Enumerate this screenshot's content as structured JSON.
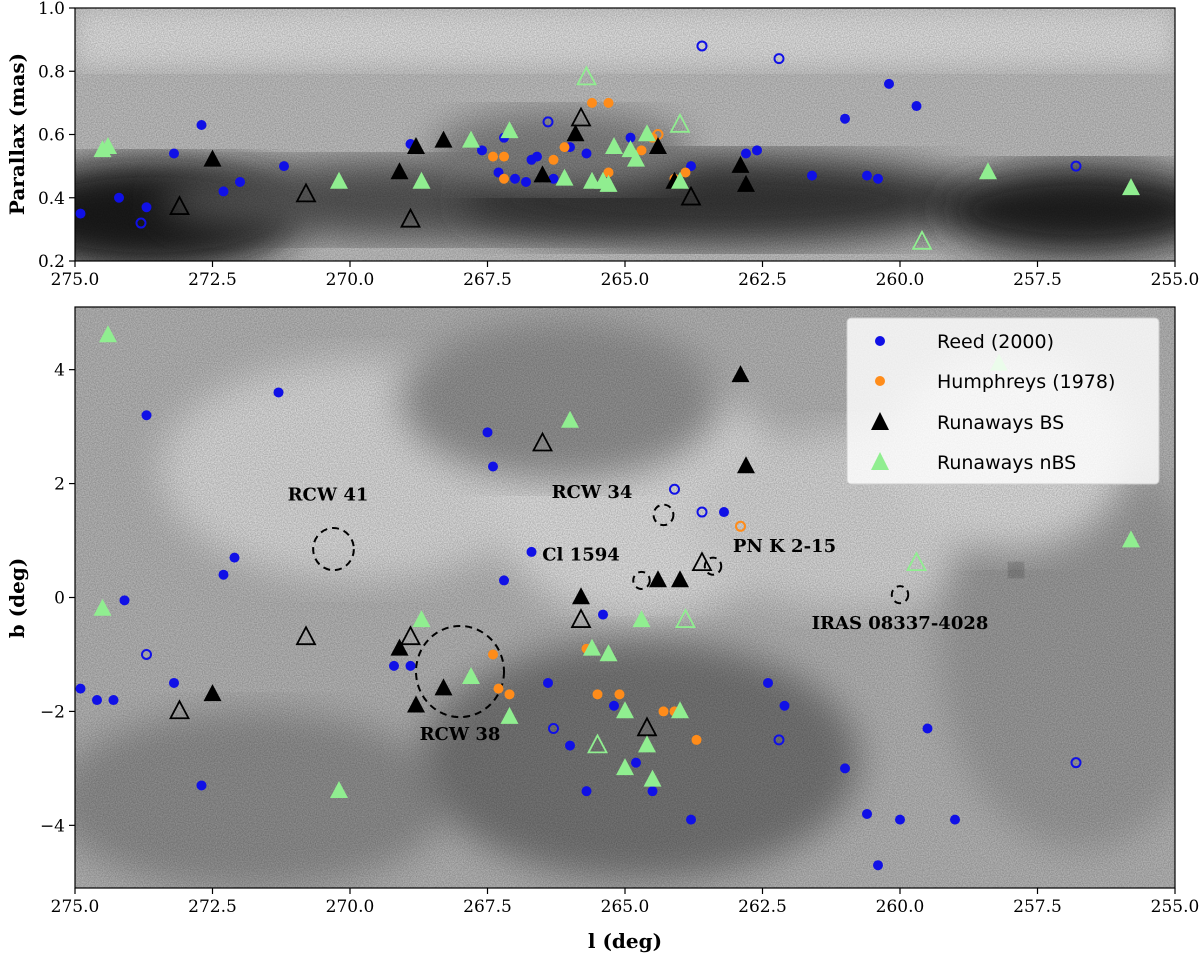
{
  "colors": {
    "reed": "#1010e6",
    "humphreys": "#ff8c1a",
    "bs": "#000000",
    "nbs": "#90ee90"
  },
  "chart_data": [
    {
      "type": "scatter",
      "xlabel": "",
      "ylabel": "Parallax (mas)",
      "xlim": [
        275.0,
        255.0
      ],
      "ylim": [
        0.2,
        1.0
      ],
      "x_ticks": [
        "275.0",
        "272.5",
        "270.0",
        "267.5",
        "265.0",
        "262.5",
        "260.0",
        "257.5",
        "255.0"
      ],
      "y_ticks": [
        "0.2",
        "0.4",
        "0.6",
        "0.8",
        "1.0"
      ],
      "background": "grayscale dust density map",
      "series": [
        {
          "name": "Reed (2000)",
          "marker": "circle",
          "color": "blue",
          "filled": [
            [
              274.9,
              0.35
            ],
            [
              274.2,
              0.4
            ],
            [
              273.7,
              0.37
            ],
            [
              273.2,
              0.54
            ],
            [
              272.7,
              0.63
            ],
            [
              272.3,
              0.42
            ],
            [
              272.0,
              0.45
            ],
            [
              271.2,
              0.5
            ],
            [
              268.9,
              0.57
            ],
            [
              267.6,
              0.55
            ],
            [
              267.3,
              0.48
            ],
            [
              267.0,
              0.46
            ],
            [
              266.8,
              0.45
            ],
            [
              266.7,
              0.52
            ],
            [
              266.6,
              0.53
            ],
            [
              267.2,
              0.59
            ],
            [
              266.3,
              0.46
            ],
            [
              266.0,
              0.56
            ],
            [
              265.7,
              0.54
            ],
            [
              264.9,
              0.59
            ],
            [
              263.8,
              0.5
            ],
            [
              262.8,
              0.54
            ],
            [
              262.6,
              0.55
            ],
            [
              261.6,
              0.47
            ],
            [
              261.0,
              0.65
            ],
            [
              260.6,
              0.47
            ],
            [
              260.4,
              0.46
            ],
            [
              260.2,
              0.76
            ],
            [
              259.7,
              0.69
            ]
          ],
          "open": [
            [
              273.8,
              0.32
            ],
            [
              266.4,
              0.64
            ],
            [
              263.6,
              0.88
            ],
            [
              262.2,
              0.84
            ],
            [
              256.8,
              0.5
            ]
          ]
        },
        {
          "name": "Humphreys (1978)",
          "marker": "circle",
          "color": "orange",
          "filled": [
            [
              267.4,
              0.53
            ],
            [
              267.2,
              0.53
            ],
            [
              267.2,
              0.46
            ],
            [
              266.3,
              0.52
            ],
            [
              266.1,
              0.56
            ],
            [
              265.6,
              0.7
            ],
            [
              265.3,
              0.7
            ],
            [
              265.3,
              0.48
            ],
            [
              264.7,
              0.55
            ],
            [
              264.5,
              0.59
            ],
            [
              264.1,
              0.46
            ],
            [
              263.9,
              0.48
            ]
          ],
          "open": [
            [
              264.4,
              0.6
            ]
          ]
        },
        {
          "name": "Runaways BS",
          "marker": "triangle",
          "color": "black",
          "filled": [
            [
              272.5,
              0.52
            ],
            [
              269.1,
              0.48
            ],
            [
              268.8,
              0.56
            ],
            [
              268.3,
              0.58
            ],
            [
              266.5,
              0.47
            ],
            [
              265.9,
              0.6
            ],
            [
              264.4,
              0.56
            ],
            [
              264.1,
              0.45
            ],
            [
              262.9,
              0.5
            ],
            [
              262.8,
              0.44
            ]
          ],
          "open": [
            [
              273.1,
              0.37
            ],
            [
              270.8,
              0.41
            ],
            [
              268.9,
              0.33
            ],
            [
              265.8,
              0.65
            ],
            [
              263.8,
              0.4
            ]
          ]
        },
        {
          "name": "Runaways nBS",
          "marker": "triangle",
          "color": "lightgreen",
          "filled": [
            [
              274.5,
              0.55
            ],
            [
              274.4,
              0.56
            ],
            [
              270.2,
              0.45
            ],
            [
              268.7,
              0.45
            ],
            [
              267.8,
              0.58
            ],
            [
              267.1,
              0.61
            ],
            [
              266.1,
              0.46
            ],
            [
              265.6,
              0.45
            ],
            [
              265.4,
              0.45
            ],
            [
              265.3,
              0.44
            ],
            [
              265.2,
              0.56
            ],
            [
              264.9,
              0.55
            ],
            [
              264.8,
              0.52
            ],
            [
              264.6,
              0.6
            ],
            [
              264.0,
              0.45
            ],
            [
              258.4,
              0.48
            ],
            [
              255.8,
              0.43
            ]
          ],
          "open": [
            [
              265.7,
              0.78
            ],
            [
              264.0,
              0.63
            ],
            [
              259.6,
              0.26
            ]
          ]
        }
      ]
    },
    {
      "type": "scatter",
      "xlabel": "l (deg)",
      "ylabel": "b (deg)",
      "xlim": [
        275.0,
        255.0
      ],
      "ylim": [
        -5.1,
        5.1
      ],
      "x_ticks": [
        "275.0",
        "272.5",
        "270.0",
        "267.5",
        "265.0",
        "262.5",
        "260.0",
        "257.5",
        "255.0"
      ],
      "y_ticks": [
        "−4",
        "−2",
        "0",
        "2",
        "4"
      ],
      "legend_position": "top-right",
      "background": "grayscale dust extinction map",
      "series": [
        {
          "name": "Reed (2000)",
          "marker": "circle",
          "color": "blue",
          "filled": [
            [
              274.9,
              -1.6
            ],
            [
              274.6,
              -1.8
            ],
            [
              274.3,
              -1.8
            ],
            [
              274.1,
              -0.05
            ],
            [
              273.7,
              3.2
            ],
            [
              273.2,
              -1.5
            ],
            [
              272.7,
              -3.3
            ],
            [
              272.3,
              0.4
            ],
            [
              272.1,
              0.7
            ],
            [
              271.3,
              3.6
            ],
            [
              269.2,
              -1.2
            ],
            [
              268.9,
              -1.2
            ],
            [
              267.5,
              2.9
            ],
            [
              267.4,
              2.3
            ],
            [
              267.2,
              0.3
            ],
            [
              266.7,
              0.8
            ],
            [
              266.4,
              -1.5
            ],
            [
              266.0,
              -2.6
            ],
            [
              265.7,
              -3.4
            ],
            [
              265.4,
              -0.3
            ],
            [
              265.2,
              -1.9
            ],
            [
              264.8,
              -2.9
            ],
            [
              264.5,
              -3.4
            ],
            [
              263.8,
              -3.9
            ],
            [
              262.4,
              -1.5
            ],
            [
              262.1,
              -1.9
            ],
            [
              261.0,
              -3.0
            ],
            [
              260.6,
              -3.8
            ],
            [
              260.4,
              -4.7
            ],
            [
              260.0,
              -3.9
            ],
            [
              259.5,
              -2.3
            ],
            [
              259.0,
              -3.9
            ],
            [
              263.2,
              1.5
            ]
          ],
          "open": [
            [
              273.7,
              -1.0
            ],
            [
              266.3,
              -2.3
            ],
            [
              264.1,
              1.9
            ],
            [
              263.6,
              1.5
            ],
            [
              262.2,
              -2.5
            ],
            [
              256.8,
              -2.9
            ]
          ]
        },
        {
          "name": "Humphreys (1978)",
          "marker": "circle",
          "color": "orange",
          "filled": [
            [
              267.4,
              -1.0
            ],
            [
              267.3,
              -1.6
            ],
            [
              267.1,
              -1.7
            ],
            [
              265.7,
              -0.9
            ],
            [
              265.5,
              -1.7
            ],
            [
              265.1,
              -1.7
            ],
            [
              264.3,
              -2.0
            ],
            [
              264.1,
              -2.0
            ],
            [
              263.7,
              -2.5
            ]
          ],
          "open": [
            [
              262.9,
              1.25
            ]
          ]
        },
        {
          "name": "Runaways BS",
          "marker": "triangle",
          "color": "black",
          "filled": [
            [
              272.5,
              -1.7
            ],
            [
              269.1,
              -0.9
            ],
            [
              268.8,
              -1.9
            ],
            [
              268.3,
              -1.6
            ],
            [
              265.8,
              0.0
            ],
            [
              264.4,
              0.3
            ],
            [
              264.0,
              0.3
            ],
            [
              262.9,
              3.9
            ],
            [
              262.8,
              2.3
            ]
          ],
          "open": [
            [
              273.1,
              -2.0
            ],
            [
              270.8,
              -0.7
            ],
            [
              268.9,
              -0.7
            ],
            [
              266.5,
              2.7
            ],
            [
              265.8,
              -0.4
            ],
            [
              264.6,
              -2.3
            ],
            [
              263.6,
              0.6
            ]
          ]
        },
        {
          "name": "Runaways nBS",
          "marker": "triangle",
          "color": "lightgreen",
          "filled": [
            [
              274.4,
              4.6
            ],
            [
              274.5,
              -0.2
            ],
            [
              270.2,
              -3.4
            ],
            [
              268.7,
              -0.4
            ],
            [
              267.8,
              -1.4
            ],
            [
              267.1,
              -2.1
            ],
            [
              266.0,
              3.1
            ],
            [
              265.6,
              -0.9
            ],
            [
              265.3,
              -1.0
            ],
            [
              265.0,
              -2.0
            ],
            [
              265.0,
              -3.0
            ],
            [
              264.6,
              -2.6
            ],
            [
              264.5,
              -3.2
            ],
            [
              264.7,
              -0.4
            ],
            [
              264.0,
              -2.0
            ],
            [
              258.2,
              4.1
            ],
            [
              255.8,
              1.0
            ]
          ],
          "open": [
            [
              265.5,
              -2.6
            ],
            [
              263.9,
              -0.4
            ],
            [
              259.7,
              0.6
            ]
          ]
        }
      ],
      "regions": [
        {
          "label": "RCW 41",
          "l": 270.3,
          "b": 0.85,
          "r": 0.37,
          "label_l": 270.4,
          "label_b": 1.7
        },
        {
          "label": "RCW 38",
          "l": 268.0,
          "b": -1.3,
          "r": 0.8,
          "label_l": 268.0,
          "label_b": -2.5
        },
        {
          "label": "RCW 34",
          "l": 264.3,
          "b": 1.45,
          "r": 0.18,
          "label_l": 265.6,
          "label_b": 1.75
        },
        {
          "label": "Cl 1594",
          "l": 264.7,
          "b": 0.3,
          "r": 0.15,
          "label_l": 265.8,
          "label_b": 0.65
        },
        {
          "label": "PN K 2-15",
          "l": 263.4,
          "b": 0.55,
          "r": 0.15,
          "label_l": 262.1,
          "label_b": 0.8
        },
        {
          "label": "IRAS 08337-4028",
          "l": 260.0,
          "b": 0.05,
          "r": 0.15,
          "label_l": 260.0,
          "label_b": -0.55
        }
      ],
      "legend": [
        "Reed (2000)",
        "Humphreys (1978)",
        "Runaways BS",
        "Runaways nBS"
      ]
    }
  ]
}
